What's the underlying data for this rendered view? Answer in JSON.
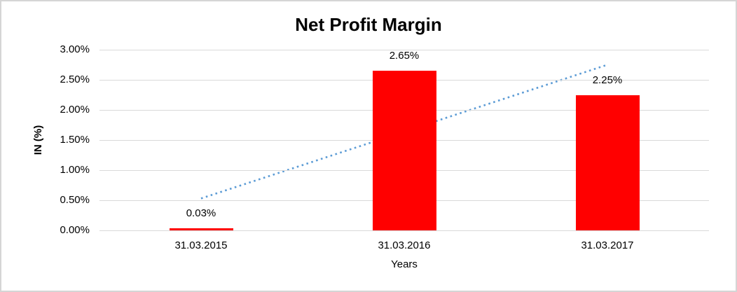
{
  "chart_data": {
    "type": "bar",
    "title": "Net Profit Margin",
    "xlabel": "Years",
    "ylabel": "IN (%)",
    "categories": [
      "31.03.2015",
      "31.03.2016",
      "31.03.2017"
    ],
    "values": [
      0.03,
      2.65,
      2.25
    ],
    "data_labels": [
      "0.03%",
      "2.65%",
      "2.25%"
    ],
    "ylim": [
      0,
      3
    ],
    "yticks": [
      0,
      0.5,
      1,
      1.5,
      2,
      2.5,
      3
    ],
    "ytick_labels": [
      "0.00%",
      "0.50%",
      "1.00%",
      "1.50%",
      "2.00%",
      "2.50%",
      "3.00%"
    ],
    "grid": true,
    "legend": false,
    "bar_color": "#FF0000",
    "gridline_color": "#D9D9D9",
    "text_color": "#000000",
    "trendline": {
      "type": "linear",
      "style": "dotted",
      "color": "#5B9BD5",
      "start_value": 0.53,
      "end_value": 2.75
    }
  }
}
